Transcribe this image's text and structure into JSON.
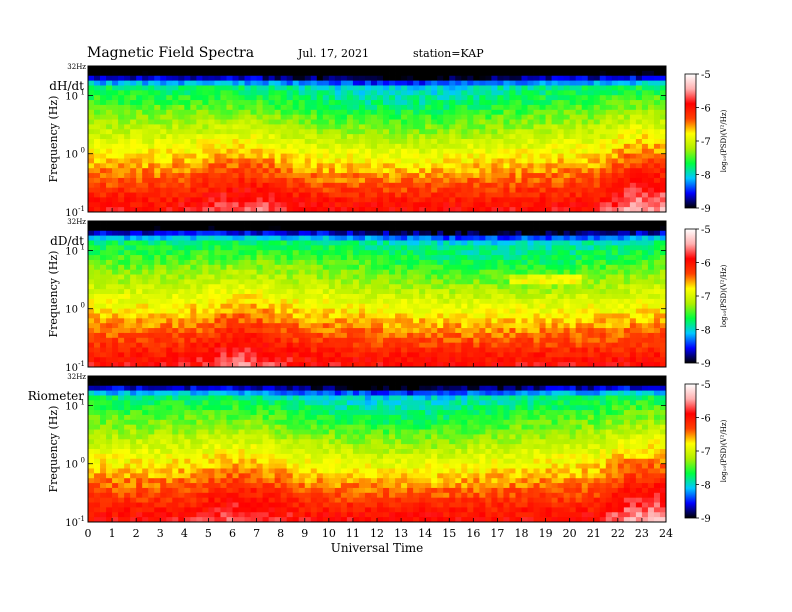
{
  "header": {
    "title": "Magnetic  Field  Spectra",
    "date": "Jul.  17, 2021",
    "station": "station=KAP"
  },
  "chart_data": {
    "type": "heatmap",
    "xlabel": "Universal Time",
    "xlim": [
      0,
      24
    ],
    "x_ticks": [
      "0",
      "1",
      "2",
      "3",
      "4",
      "5",
      "6",
      "7",
      "8",
      "9",
      "10",
      "11",
      "12",
      "13",
      "14",
      "15",
      "16",
      "17",
      "18",
      "19",
      "20",
      "21",
      "22",
      "23",
      "24"
    ],
    "ylabel": "Frequency  (Hz)",
    "yscale": "log",
    "ylim": [
      0.1,
      32
    ],
    "y_top_label": "32Hz",
    "y_ticks": [
      {
        "value": 10,
        "base": "10",
        "exp": "1"
      },
      {
        "value": 1,
        "base": "10",
        "exp": "0"
      },
      {
        "value": 0.1,
        "base": "10",
        "exp": "-1"
      }
    ],
    "colorbar": {
      "label": "log₁₀(PSD)(V²/Hz)",
      "range": [
        -9,
        -5
      ],
      "ticks": [
        "-5",
        "-6",
        "-7",
        "-8",
        "-9"
      ],
      "colors": [
        "#000000",
        "#0000ff",
        "#00c8ff",
        "#00ff40",
        "#b0f000",
        "#ffff00",
        "#ff4000",
        "#ff0000",
        "#ffb0b0",
        "#ffffff"
      ]
    },
    "panels": [
      {
        "label": "dH/dt",
        "spectral_profile": "high-latitude",
        "night_enhancement_hours": [
          21,
          24
        ]
      },
      {
        "label": "dD/dt",
        "spectral_profile": "broad",
        "band_line_hours": [
          17.5,
          20.5
        ]
      },
      {
        "label": "Riometer",
        "spectral_profile": "high-latitude",
        "night_enhancement_hours": [
          21,
          24
        ]
      }
    ]
  }
}
